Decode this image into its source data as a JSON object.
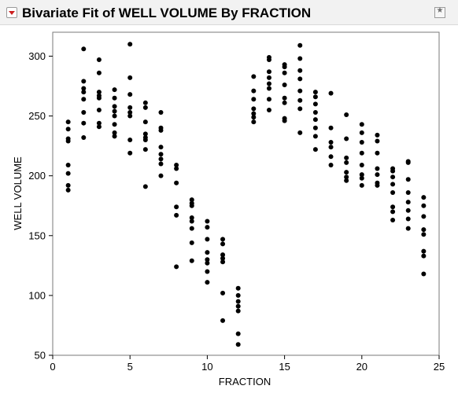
{
  "window": {
    "title": "Bivariate Fit of WELL VOLUME By FRACTION",
    "menu_icon": "red-triangle-menu-icon",
    "pin_icon": "pin-star-icon"
  },
  "chart_data": {
    "type": "scatter",
    "xlabel": "FRACTION",
    "ylabel": "WELL VOLUME",
    "xlim": [
      0,
      25
    ],
    "ylim": [
      50,
      320
    ],
    "xticks": [
      0,
      5,
      10,
      15,
      20,
      25
    ],
    "yticks": [
      50,
      100,
      150,
      200,
      250,
      300
    ],
    "grid": false,
    "marker_color": "#000000",
    "points": [
      [
        1,
        245
      ],
      [
        1,
        239
      ],
      [
        1,
        231
      ],
      [
        1,
        229
      ],
      [
        1,
        209
      ],
      [
        1,
        202
      ],
      [
        1,
        192
      ],
      [
        1,
        188
      ],
      [
        2,
        306
      ],
      [
        2,
        279
      ],
      [
        2,
        273
      ],
      [
        2,
        270
      ],
      [
        2,
        264
      ],
      [
        2,
        253
      ],
      [
        2,
        244
      ],
      [
        2,
        232
      ],
      [
        3,
        297
      ],
      [
        3,
        286
      ],
      [
        3,
        270
      ],
      [
        3,
        267
      ],
      [
        3,
        265
      ],
      [
        3,
        255
      ],
      [
        3,
        244
      ],
      [
        3,
        241
      ],
      [
        4,
        272
      ],
      [
        4,
        265
      ],
      [
        4,
        258
      ],
      [
        4,
        254
      ],
      [
        4,
        250
      ],
      [
        4,
        243
      ],
      [
        4,
        236
      ],
      [
        4,
        233
      ],
      [
        5,
        310
      ],
      [
        5,
        282
      ],
      [
        5,
        268
      ],
      [
        5,
        257
      ],
      [
        5,
        253
      ],
      [
        5,
        250
      ],
      [
        5,
        230
      ],
      [
        5,
        219
      ],
      [
        6,
        261
      ],
      [
        6,
        257
      ],
      [
        6,
        245
      ],
      [
        6,
        235
      ],
      [
        6,
        232
      ],
      [
        6,
        230
      ],
      [
        6,
        222
      ],
      [
        6,
        191
      ],
      [
        7,
        253
      ],
      [
        7,
        240
      ],
      [
        7,
        238
      ],
      [
        7,
        224
      ],
      [
        7,
        218
      ],
      [
        7,
        214
      ],
      [
        7,
        210
      ],
      [
        7,
        200
      ],
      [
        8,
        209
      ],
      [
        8,
        206
      ],
      [
        8,
        194
      ],
      [
        8,
        174
      ],
      [
        8,
        167
      ],
      [
        8,
        124
      ],
      [
        9,
        180
      ],
      [
        9,
        177
      ],
      [
        9,
        175
      ],
      [
        9,
        165
      ],
      [
        9,
        162
      ],
      [
        9,
        156
      ],
      [
        9,
        144
      ],
      [
        9,
        129
      ],
      [
        10,
        162
      ],
      [
        10,
        157
      ],
      [
        10,
        147
      ],
      [
        10,
        136
      ],
      [
        10,
        130
      ],
      [
        10,
        127
      ],
      [
        10,
        120
      ],
      [
        10,
        111
      ],
      [
        11,
        147
      ],
      [
        11,
        143
      ],
      [
        11,
        134
      ],
      [
        11,
        131
      ],
      [
        11,
        128
      ],
      [
        11,
        102
      ],
      [
        11,
        79
      ],
      [
        12,
        106
      ],
      [
        12,
        100
      ],
      [
        12,
        95
      ],
      [
        12,
        91
      ],
      [
        12,
        87
      ],
      [
        12,
        68
      ],
      [
        12,
        59
      ],
      [
        13,
        283
      ],
      [
        13,
        271
      ],
      [
        13,
        264
      ],
      [
        13,
        256
      ],
      [
        13,
        252
      ],
      [
        13,
        249
      ],
      [
        13,
        245
      ],
      [
        14,
        299
      ],
      [
        14,
        297
      ],
      [
        14,
        287
      ],
      [
        14,
        282
      ],
      [
        14,
        277
      ],
      [
        14,
        273
      ],
      [
        14,
        264
      ],
      [
        14,
        255
      ],
      [
        15,
        293
      ],
      [
        15,
        291
      ],
      [
        15,
        286
      ],
      [
        15,
        276
      ],
      [
        15,
        265
      ],
      [
        15,
        261
      ],
      [
        15,
        248
      ],
      [
        15,
        246
      ],
      [
        16,
        309
      ],
      [
        16,
        298
      ],
      [
        16,
        288
      ],
      [
        16,
        281
      ],
      [
        16,
        271
      ],
      [
        16,
        263
      ],
      [
        16,
        256
      ],
      [
        16,
        236
      ],
      [
        17,
        270
      ],
      [
        17,
        266
      ],
      [
        17,
        260
      ],
      [
        17,
        253
      ],
      [
        17,
        247
      ],
      [
        17,
        240
      ],
      [
        17,
        233
      ],
      [
        17,
        222
      ],
      [
        18,
        269
      ],
      [
        18,
        240
      ],
      [
        18,
        228
      ],
      [
        18,
        224
      ],
      [
        18,
        216
      ],
      [
        18,
        209
      ],
      [
        19,
        251
      ],
      [
        19,
        231
      ],
      [
        19,
        215
      ],
      [
        19,
        211
      ],
      [
        19,
        203
      ],
      [
        19,
        199
      ],
      [
        19,
        196
      ],
      [
        20,
        243
      ],
      [
        20,
        236
      ],
      [
        20,
        228
      ],
      [
        20,
        219
      ],
      [
        20,
        209
      ],
      [
        20,
        201
      ],
      [
        20,
        198
      ],
      [
        20,
        192
      ],
      [
        21,
        234
      ],
      [
        21,
        229
      ],
      [
        21,
        219
      ],
      [
        21,
        206
      ],
      [
        21,
        201
      ],
      [
        21,
        194
      ],
      [
        21,
        192
      ],
      [
        22,
        206
      ],
      [
        22,
        204
      ],
      [
        22,
        199
      ],
      [
        22,
        193
      ],
      [
        22,
        186
      ],
      [
        22,
        174
      ],
      [
        22,
        170
      ],
      [
        22,
        163
      ],
      [
        23,
        212
      ],
      [
        23,
        211
      ],
      [
        23,
        197
      ],
      [
        23,
        186
      ],
      [
        23,
        178
      ],
      [
        23,
        171
      ],
      [
        23,
        164
      ],
      [
        23,
        156
      ],
      [
        24,
        182
      ],
      [
        24,
        175
      ],
      [
        24,
        166
      ],
      [
        24,
        155
      ],
      [
        24,
        151
      ],
      [
        24,
        137
      ],
      [
        24,
        133
      ],
      [
        24,
        118
      ]
    ]
  }
}
